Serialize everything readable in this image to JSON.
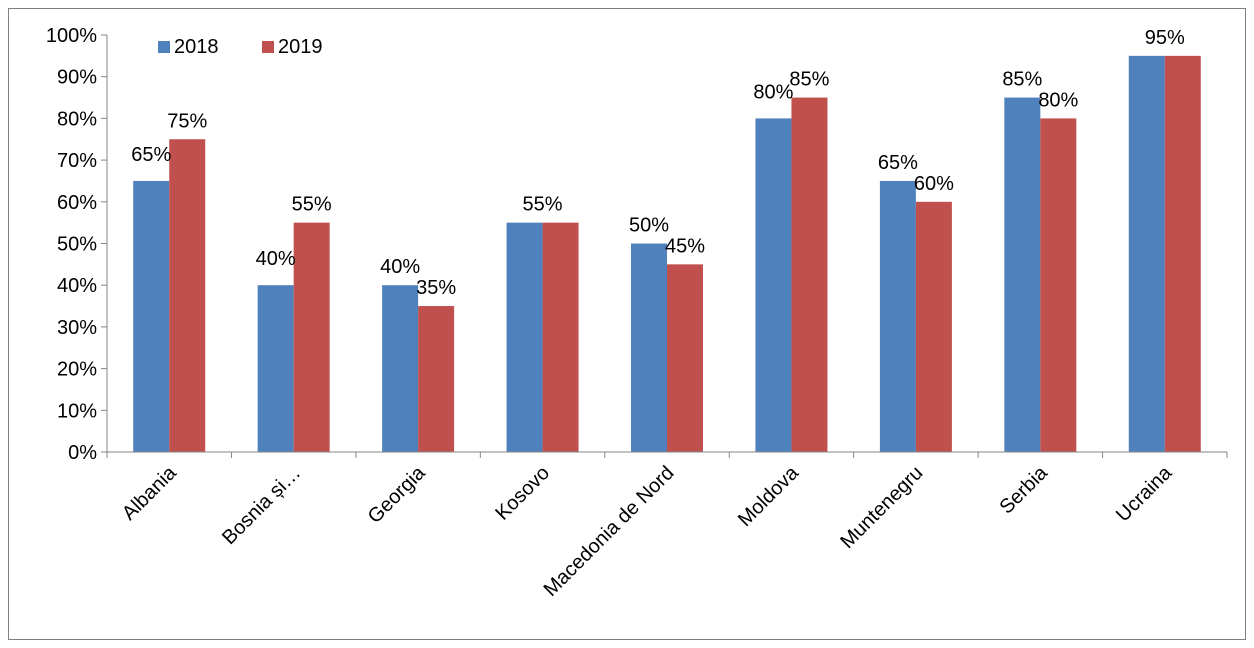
{
  "chart_data": {
    "type": "bar",
    "categories": [
      "Albania",
      "Bosnia și…",
      "Georgia",
      "Kosovo",
      "Macedonia de Nord",
      "Moldova",
      "Muntenegru",
      "Serbia",
      "Ucraina"
    ],
    "series": [
      {
        "name": "2018",
        "color": "#4f81bd",
        "values": [
          65,
          40,
          40,
          55,
          50,
          80,
          65,
          85,
          95
        ]
      },
      {
        "name": "2019",
        "color": "#c0504d",
        "values": [
          75,
          55,
          35,
          55,
          45,
          85,
          60,
          80,
          95
        ]
      }
    ],
    "data_labels": [
      [
        {
          "s": 0,
          "text": "65%"
        },
        {
          "s": 1,
          "text": "75%"
        }
      ],
      [
        {
          "s": 0,
          "text": "40%"
        },
        {
          "s": 1,
          "text": "55%"
        }
      ],
      [
        {
          "s": 0,
          "text": "40%"
        },
        {
          "s": 1,
          "text": "35%"
        }
      ],
      [
        {
          "s": "both",
          "text": "55%"
        }
      ],
      [
        {
          "s": 0,
          "text": "50%"
        },
        {
          "s": 1,
          "text": "45%"
        }
      ],
      [
        {
          "s": 0,
          "text": "80%"
        },
        {
          "s": 1,
          "text": "85%"
        }
      ],
      [
        {
          "s": 0,
          "text": "65%"
        },
        {
          "s": 1,
          "text": "60%"
        }
      ],
      [
        {
          "s": 0,
          "text": "85%"
        },
        {
          "s": 1,
          "text": "80%"
        }
      ],
      [
        {
          "s": "both",
          "text": "95%"
        }
      ]
    ],
    "ylim": [
      0,
      100
    ],
    "yticks": [
      "0%",
      "10%",
      "20%",
      "30%",
      "40%",
      "50%",
      "60%",
      "70%",
      "80%",
      "90%",
      "100%"
    ],
    "legend_position": "top-left",
    "grid": false,
    "title": "",
    "xlabel": "",
    "ylabel": ""
  }
}
